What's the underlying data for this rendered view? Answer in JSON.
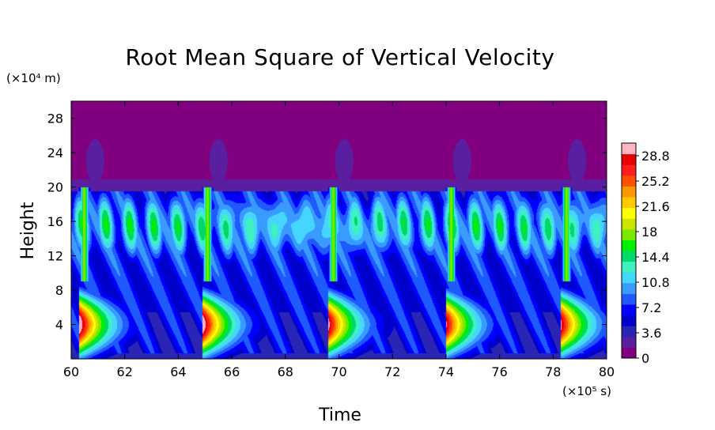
{
  "chart_data": {
    "type": "heatmap",
    "title": "Root Mean Square of Vertical Velocity",
    "xlabel": "Time",
    "ylabel": "Height",
    "x_unit": "(×10⁵ s)",
    "y_unit": "(×10⁴ m)",
    "xlim": [
      60,
      80
    ],
    "ylim": [
      0,
      30
    ],
    "x_ticks": [
      "60",
      "62",
      "64",
      "66",
      "68",
      "70",
      "72",
      "74",
      "76",
      "78",
      "80"
    ],
    "y_ticks": [
      "4",
      "8",
      "12",
      "16",
      "20",
      "24",
      "28"
    ],
    "x_tick_values": [
      60,
      62,
      64,
      66,
      68,
      70,
      72,
      74,
      76,
      78,
      80
    ],
    "y_tick_values": [
      4,
      8,
      12,
      16,
      20,
      24,
      28
    ],
    "colorbar": {
      "min": 0,
      "max": 30.6,
      "tick_labels": [
        "0",
        "3.6",
        "7.2",
        "10.8",
        "14.4",
        "18",
        "21.6",
        "25.2",
        "28.8"
      ],
      "tick_values": [
        0,
        3.6,
        7.2,
        10.8,
        14.4,
        18,
        21.6,
        25.2,
        28.8
      ],
      "colors": [
        "#800080",
        "#5a1fa0",
        "#2b25b5",
        "#0000cd",
        "#0000ff",
        "#1e5aff",
        "#3a9bff",
        "#45d6ff",
        "#3ff0c0",
        "#00d86a",
        "#00f000",
        "#7ce800",
        "#c8e600",
        "#ffff00",
        "#ffc800",
        "#ff9600",
        "#ff5000",
        "#ff1e1e",
        "#e60000",
        "#ffb6c1"
      ]
    },
    "events": [
      {
        "time": 60.3,
        "strength": 1.0
      },
      {
        "time": 64.9,
        "strength": 1.0
      },
      {
        "time": 69.6,
        "strength": 0.95
      },
      {
        "time": 74.0,
        "strength": 0.93
      },
      {
        "time": 78.3,
        "strength": 0.93
      }
    ]
  }
}
